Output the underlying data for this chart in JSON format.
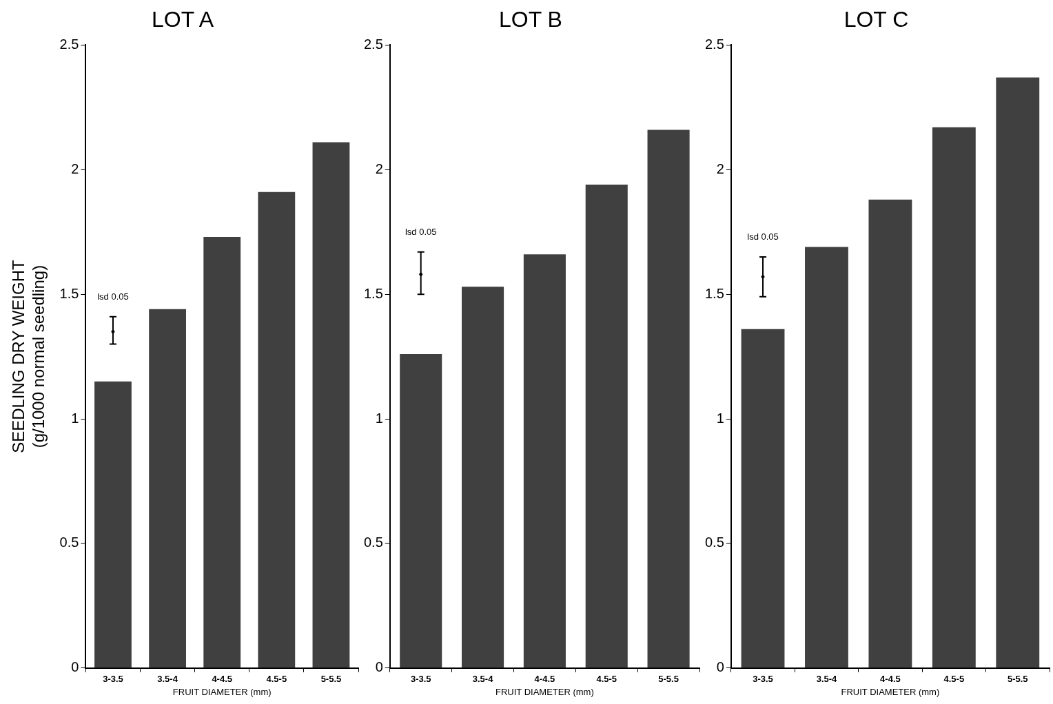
{
  "chart_data": [
    {
      "type": "bar",
      "title": "LOT A",
      "xlabel": "FRUIT DIAMETER (mm)",
      "ylabel": "SEEDLING DRY WEIGHT\n(g/1000 normal seedling)",
      "categories": [
        "3-3.5",
        "3.5-4",
        "4-4.5",
        "4.5-5",
        "5-5.5"
      ],
      "series": [
        {
          "color": "#404040",
          "values": [
            1.15,
            1.44,
            1.73,
            1.91,
            2.11
          ]
        },
        {
          "type": "scatter",
          "marker": "circle",
          "color": "#000000",
          "values": [
            1.35,
            null,
            null,
            null,
            null
          ],
          "errors": [
            [
              1.3,
              1.41
            ],
            null,
            null,
            null,
            null
          ]
        }
      ],
      "annotations": [
        "lsd 0.05"
      ],
      "ylim": [
        0,
        2.5
      ],
      "yticks": [
        0,
        0.5,
        1,
        1.5,
        2,
        2.5
      ],
      "grid": false,
      "legend": false
    },
    {
      "type": "bar",
      "title": "LOT B",
      "xlabel": "FRUIT DIAMETER (mm)",
      "categories": [
        "3-3.5",
        "3.5-4",
        "4-4.5",
        "4.5-5",
        "5-5.5"
      ],
      "series": [
        {
          "color": "#404040",
          "values": [
            1.26,
            1.53,
            1.66,
            1.94,
            2.16
          ]
        },
        {
          "type": "scatter",
          "marker": "circle",
          "color": "#000000",
          "values": [
            1.58,
            null,
            null,
            null,
            null
          ],
          "errors": [
            [
              1.5,
              1.67
            ],
            null,
            null,
            null,
            null
          ]
        }
      ],
      "annotations": [
        "lsd 0.05"
      ],
      "ylim": [
        0,
        2.5
      ],
      "yticks": [
        0,
        0.5,
        1,
        1.5,
        2,
        2.5
      ],
      "grid": false,
      "legend": false
    },
    {
      "type": "bar",
      "title": "LOT C",
      "xlabel": "FRUIT DIAMETER (mm)",
      "categories": [
        "3-3.5",
        "3.5-4",
        "4-4.5",
        "4.5-5",
        "5-5.5"
      ],
      "series": [
        {
          "color": "#404040",
          "values": [
            1.36,
            1.69,
            1.88,
            2.17,
            2.37
          ]
        },
        {
          "type": "scatter",
          "marker": "circle",
          "color": "#000000",
          "values": [
            1.57,
            null,
            null,
            null,
            null
          ],
          "errors": [
            [
              1.49,
              1.65
            ],
            null,
            null,
            null,
            null
          ]
        }
      ],
      "annotations": [
        "lsd 0.05"
      ],
      "ylim": [
        0,
        2.5
      ],
      "yticks": [
        0,
        0.5,
        1,
        1.5,
        2,
        2.5
      ],
      "grid": false,
      "legend": false
    }
  ]
}
